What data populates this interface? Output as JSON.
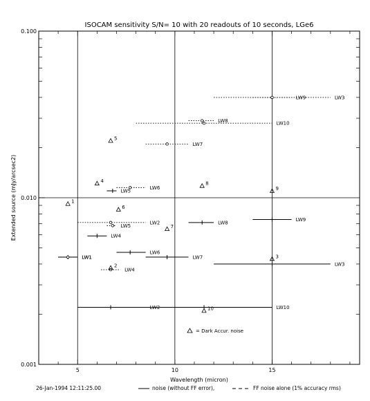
{
  "chart_data": {
    "type": "scatter",
    "title": "ISOCAM sensitivity S/N= 10 with 20 readouts of 10 seconds, LGe6",
    "xlabel": "Wavelength (micron)",
    "ylabel": "Extended source (mJy/arcsec2)",
    "xlim": [
      3,
      19.5
    ],
    "ylim": [
      0.001,
      0.1
    ],
    "yscale": "log",
    "xticks": [
      5,
      10,
      15
    ],
    "yticks": [
      {
        "value": 0.001,
        "label": "0.001"
      },
      {
        "value": 0.01,
        "label": "0.010"
      },
      {
        "value": 0.1,
        "label": "0.100"
      }
    ],
    "grid_x": [
      5,
      10,
      15
    ],
    "grid_y": [
      0.01
    ],
    "legend": {
      "date": "26-Jan-1994 12:11:25.00",
      "solid": "noise (without FF error),",
      "dashed": "FF noise alone (1% accuracy rms)",
      "triangle": "= Dark Accur. noise"
    },
    "series": [
      {
        "name": "noise (without FF error),",
        "style": "solid",
        "items": [
          {
            "label": "LW1",
            "x": 4.5,
            "xmin": 4.0,
            "xmax": 5.0,
            "y": 0.0044
          },
          {
            "label": "LW2",
            "x": 6.7,
            "xmin": 5.0,
            "xmax": 8.5,
            "y": 0.0022
          },
          {
            "label": "LW3",
            "x": 15.0,
            "xmin": 12.0,
            "xmax": 18.0,
            "y": 0.004
          },
          {
            "label": "LW4",
            "x": 6.0,
            "xmin": 5.5,
            "xmax": 6.5,
            "y": 0.0059
          },
          {
            "label": "LW5",
            "x": 6.8,
            "xmin": 6.5,
            "xmax": 7.0,
            "y": 0.011
          },
          {
            "label": "LW6",
            "x": 7.7,
            "xmin": 7.0,
            "xmax": 8.5,
            "y": 0.0047
          },
          {
            "label": "LW7",
            "x": 9.6,
            "xmin": 8.5,
            "xmax": 10.7,
            "y": 0.0044
          },
          {
            "label": "LW8",
            "x": 11.4,
            "xmin": 10.7,
            "xmax": 12.0,
            "y": 0.0071
          },
          {
            "label": "LW9",
            "x": 15.0,
            "xmin": 14.0,
            "xmax": 16.0,
            "y": 0.0074
          },
          {
            "label": "LW10",
            "x": 11.5,
            "xmin": 8.0,
            "xmax": 15.0,
            "y": 0.0022
          }
        ]
      },
      {
        "name": "FF noise alone (1% accuracy rms)",
        "style": "dotted",
        "items": [
          {
            "label": "LW1",
            "x": 4.5,
            "xmin": 4.0,
            "xmax": 5.0,
            "y": 0.0044
          },
          {
            "label": "LW2",
            "x": 6.7,
            "xmin": 5.0,
            "xmax": 8.5,
            "y": 0.0071
          },
          {
            "label": "LW3",
            "x": 15.0,
            "xmin": 12.0,
            "xmax": 18.0,
            "y": 0.04
          },
          {
            "label": "LW4",
            "x": 6.7,
            "xmin": 6.2,
            "xmax": 7.2,
            "y": 0.0037
          },
          {
            "label": "LW5",
            "x": 6.8,
            "xmin": 6.5,
            "xmax": 7.0,
            "y": 0.0068
          },
          {
            "label": "LW6",
            "x": 7.7,
            "xmin": 7.0,
            "xmax": 8.5,
            "y": 0.0115
          },
          {
            "label": "LW7",
            "x": 9.6,
            "xmin": 8.5,
            "xmax": 10.7,
            "y": 0.021
          },
          {
            "label": "LW8",
            "x": 11.4,
            "xmin": 10.7,
            "xmax": 12.0,
            "y": 0.029
          },
          {
            "label": "LW9",
            "x": 15.0,
            "xmin": 14.0,
            "xmax": 16.0,
            "y": 0.04
          },
          {
            "label": "LW10",
            "x": 11.5,
            "xmin": 8.0,
            "xmax": 15.0,
            "y": 0.028
          }
        ]
      },
      {
        "name": "= Dark Accur. noise",
        "style": "triangle",
        "items": [
          {
            "label": "1",
            "x": 4.5,
            "y": 0.0092
          },
          {
            "label": "2",
            "x": 6.7,
            "y": 0.0038
          },
          {
            "label": "3",
            "x": 15.0,
            "y": 0.0043
          },
          {
            "label": "4",
            "x": 6.0,
            "y": 0.0122
          },
          {
            "label": "5",
            "x": 6.7,
            "y": 0.022
          },
          {
            "label": "6",
            "x": 7.1,
            "y": 0.0085
          },
          {
            "label": "7",
            "x": 9.6,
            "y": 0.0065
          },
          {
            "label": "8",
            "x": 11.4,
            "y": 0.0118
          },
          {
            "label": "9",
            "x": 15.0,
            "y": 0.011
          },
          {
            "label": "10",
            "x": 11.5,
            "y": 0.0021
          }
        ]
      }
    ]
  }
}
